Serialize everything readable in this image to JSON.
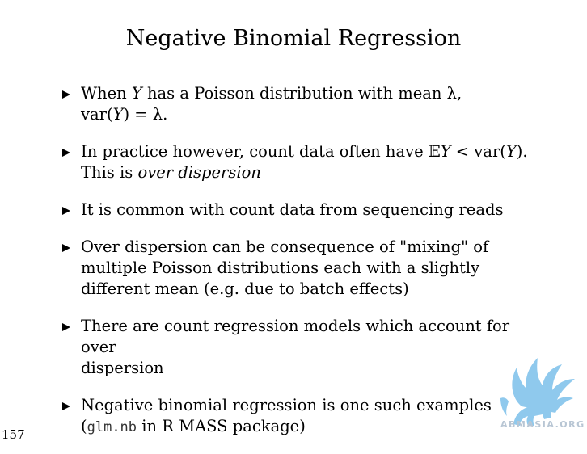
{
  "title": "Negative Binomial Regression",
  "bullets": [
    {
      "parts": [
        {
          "text": "When "
        },
        {
          "text": "Y",
          "style": "italic"
        },
        {
          "text": " has a Poisson distribution with mean λ,"
        },
        {
          "br": true
        },
        {
          "text": "var("
        },
        {
          "text": "Y",
          "style": "italic"
        },
        {
          "text": ") = λ."
        }
      ]
    },
    {
      "parts": [
        {
          "text": "In practice however, count data often have 𝔼"
        },
        {
          "text": "Y",
          "style": "italic"
        },
        {
          "text": " < var("
        },
        {
          "text": "Y",
          "style": "italic"
        },
        {
          "text": ")."
        },
        {
          "br": true
        },
        {
          "text": "This is "
        },
        {
          "text": "over dispersion",
          "style": "italic"
        }
      ]
    },
    {
      "parts": [
        {
          "text": "It is common with count data from sequencing reads"
        }
      ]
    },
    {
      "parts": [
        {
          "text": "Over dispersion can be consequence of \"mixing\" of"
        },
        {
          "br": true
        },
        {
          "text": "multiple Poisson distributions each with a slightly"
        },
        {
          "br": true
        },
        {
          "text": "different mean (e.g. due to batch effects)"
        }
      ]
    },
    {
      "parts": [
        {
          "text": "There are count regression models which account for over"
        },
        {
          "br": true
        },
        {
          "text": "dispersion"
        }
      ]
    },
    {
      "parts": [
        {
          "text": "Negative binomial regression is one such examples"
        },
        {
          "br": true
        },
        {
          "text": "("
        },
        {
          "text": "glm.nb",
          "style": "mono"
        },
        {
          "text": " in R MASS package)"
        }
      ]
    }
  ],
  "page_number": "157",
  "watermark": {
    "text": "ABMASIA.ORG",
    "icon": "winged-griffin-logo",
    "color": "#6ab7e8"
  }
}
